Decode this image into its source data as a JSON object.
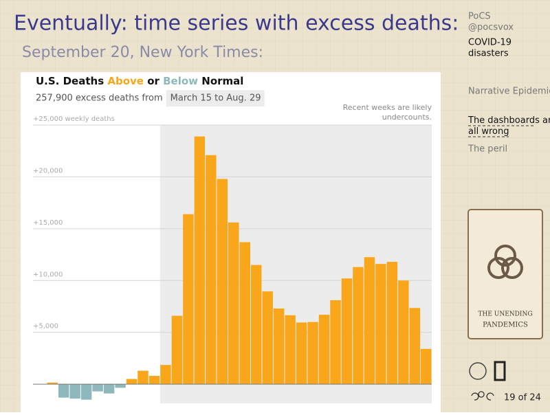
{
  "slide": {
    "title": "Eventually: time series with excess deaths:",
    "subtitle": "September 20, New York Times:",
    "sidebar": {
      "course": "PoCS",
      "handle": "@pocsvox",
      "topic": [
        "COVID-19",
        "disasters"
      ],
      "sections": [
        "Narrative Epidemiology",
        "The dashboards are all wrong",
        "The peril"
      ],
      "current_section": 1,
      "card": [
        "THE UNENDING",
        "PANDEMICS"
      ],
      "page": "19 of 24"
    }
  },
  "chart_data": {
    "type": "bar",
    "title_parts": [
      "U.S. Deaths ",
      "Above",
      " or ",
      "Below",
      " Normal"
    ],
    "subtitle": "257,900 excess deaths from",
    "period": "March 15 to Aug. 29",
    "note": [
      "Recent weeks are likely",
      "undercounts."
    ],
    "categories": [
      null,
      null,
      null,
      null,
      null,
      null,
      null,
      null,
      null,
      null,
      null,
      null,
      null,
      null,
      null,
      null,
      null,
      null,
      null,
      null,
      null,
      null,
      null,
      null,
      null,
      null,
      null,
      null,
      null,
      null,
      null,
      null,
      null,
      null
    ],
    "values": [
      150,
      -1300,
      -1400,
      -1500,
      -700,
      -900,
      -350,
      500,
      1300,
      800,
      1850,
      6600,
      16400,
      23900,
      22100,
      19800,
      15600,
      13700,
      11500,
      8950,
      7300,
      6650,
      5950,
      6000,
      6700,
      8100,
      10200,
      11300,
      12250,
      11600,
      11800,
      10000,
      7350,
      3400
    ],
    "above_color": "#f9a61a",
    "below_color": "#8fb8bd",
    "shaded_from_index": 10,
    "ylim": [
      -1850,
      25000
    ],
    "yticks": [
      {
        "value": 5000,
        "label": "+5,000"
      },
      {
        "value": 10000,
        "label": "+10,000"
      },
      {
        "value": 15000,
        "label": "+15,000"
      },
      {
        "value": 20000,
        "label": "+20,000"
      },
      {
        "value": 25000,
        "label": "+25,000 weekly deaths"
      }
    ],
    "grid": true
  }
}
